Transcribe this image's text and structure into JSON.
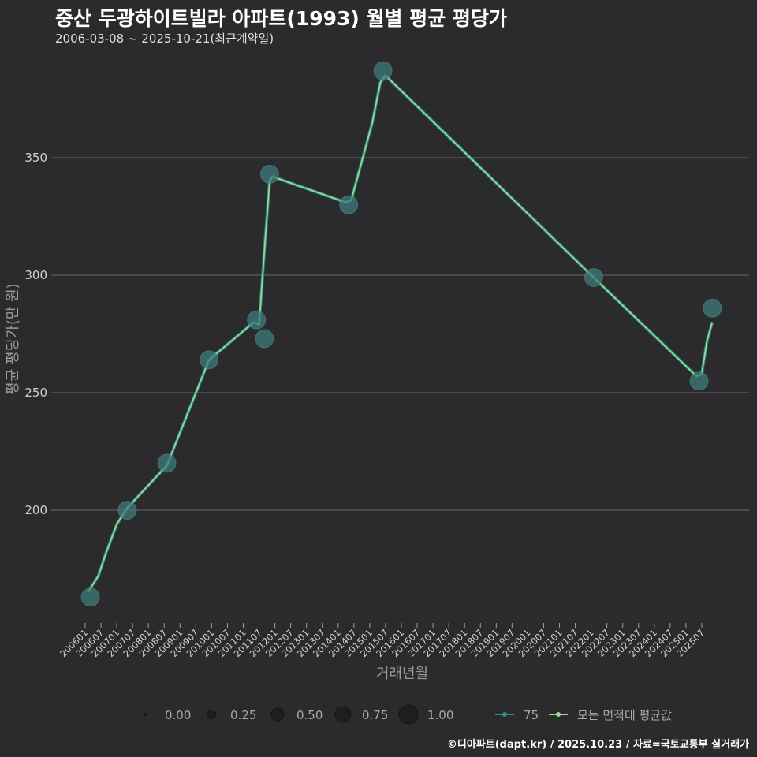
{
  "title": "중산 두광하이트빌라 아파트(1993) 월별 평균 평당가",
  "subtitle": "2006-03-08 ~ 2025-10-21(최근계약일)",
  "caption": "©디아파트(dapt.kr) / 2025.10.23 / 자료=국토교통부 실거래가",
  "colors": {
    "background": "#2b2b2d",
    "grid": "#6a6a6a",
    "series_75": "#3d7a78",
    "series_75_line": "#2f8f8a",
    "series_avg": "#90e090"
  },
  "chart_data": {
    "type": "line",
    "xlabel": "거래년월",
    "ylabel": "평균 평당가(만 원)",
    "ylim": [
      152,
      397
    ],
    "yticks": [
      200,
      250,
      300,
      350
    ],
    "xticks": [
      "200601",
      "200607",
      "200701",
      "200707",
      "200801",
      "200807",
      "200901",
      "200907",
      "201001",
      "201007",
      "201101",
      "201107",
      "201201",
      "201207",
      "201301",
      "201307",
      "201401",
      "201407",
      "201501",
      "201507",
      "201601",
      "201607",
      "201701",
      "201707",
      "201801",
      "201807",
      "201901",
      "201907",
      "202001",
      "202007",
      "202101",
      "202107",
      "202201",
      "202207",
      "202301",
      "202307",
      "202401",
      "202407",
      "202501",
      "202507"
    ],
    "xrange_months": [
      0,
      240
    ],
    "series": [
      {
        "name": "75",
        "kind": "points",
        "points": [
          {
            "x": 2,
            "y": 163
          },
          {
            "x": 16,
            "y": 200
          },
          {
            "x": 31,
            "y": 220
          },
          {
            "x": 47,
            "y": 264
          },
          {
            "x": 65,
            "y": 281
          },
          {
            "x": 68,
            "y": 273
          },
          {
            "x": 70,
            "y": 343
          },
          {
            "x": 100,
            "y": 330
          },
          {
            "x": 113,
            "y": 387
          },
          {
            "x": 193,
            "y": 299
          },
          {
            "x": 233,
            "y": 255
          },
          {
            "x": 238,
            "y": 286
          }
        ]
      },
      {
        "name": "모든 면적대 평균값",
        "kind": "line",
        "points": [
          {
            "x": 1,
            "y": 165
          },
          {
            "x": 5,
            "y": 172
          },
          {
            "x": 8,
            "y": 182
          },
          {
            "x": 12,
            "y": 194
          },
          {
            "x": 16,
            "y": 201
          },
          {
            "x": 31,
            "y": 219
          },
          {
            "x": 47,
            "y": 264
          },
          {
            "x": 64,
            "y": 280
          },
          {
            "x": 66,
            "y": 279
          },
          {
            "x": 68,
            "y": 310
          },
          {
            "x": 70,
            "y": 340
          },
          {
            "x": 71,
            "y": 342
          },
          {
            "x": 99,
            "y": 331
          },
          {
            "x": 101,
            "y": 332
          },
          {
            "x": 109,
            "y": 365
          },
          {
            "x": 112,
            "y": 382
          },
          {
            "x": 114,
            "y": 385
          },
          {
            "x": 193,
            "y": 299
          },
          {
            "x": 232,
            "y": 257
          },
          {
            "x": 234,
            "y": 258
          },
          {
            "x": 236,
            "y": 272
          },
          {
            "x": 238,
            "y": 280
          }
        ]
      }
    ],
    "legend": {
      "size_title": "",
      "sizes": [
        "0.00",
        "0.25",
        "0.50",
        "0.75",
        "1.00"
      ],
      "series_labels": [
        "75",
        "모든 면적대 평균값"
      ]
    }
  }
}
